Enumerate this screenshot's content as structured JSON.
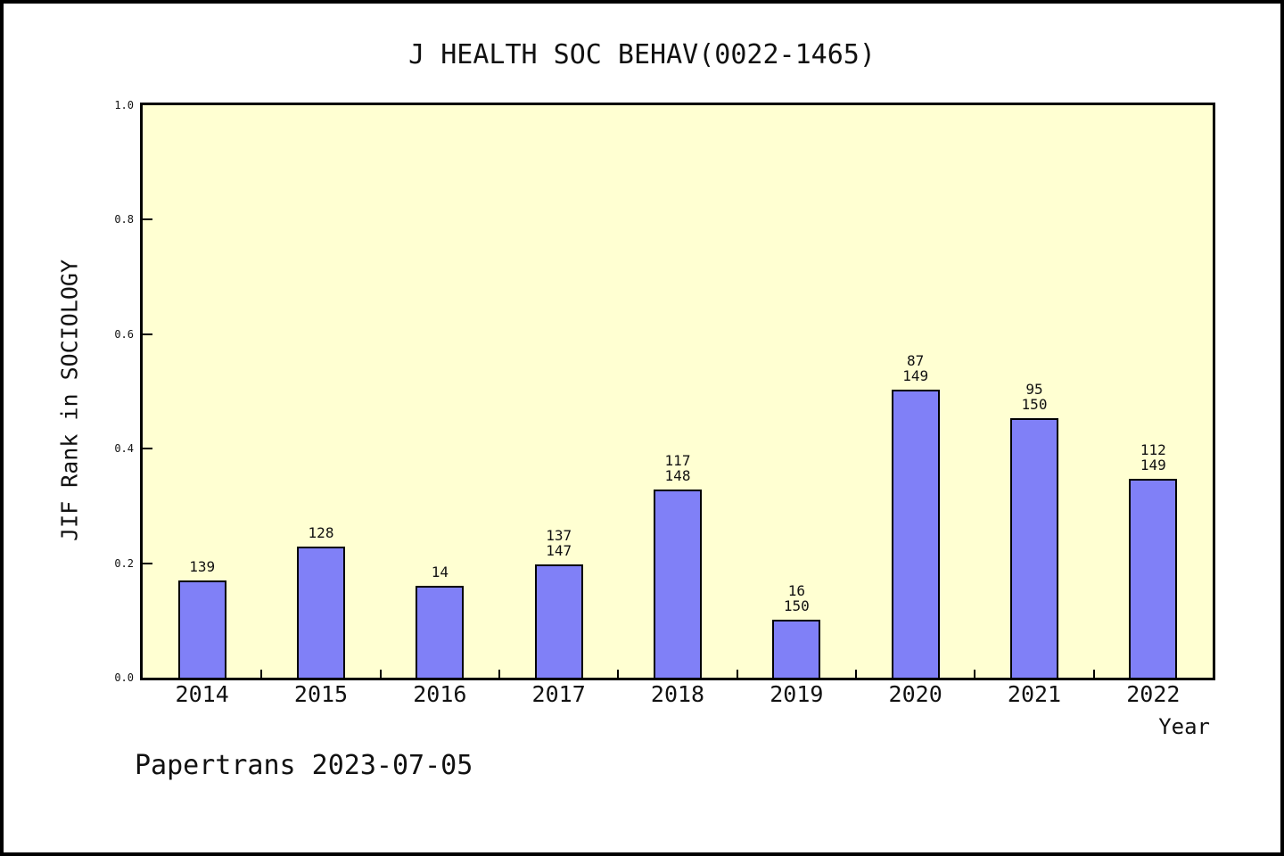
{
  "chart_data": {
    "type": "bar",
    "title": "J HEALTH SOC BEHAV(0022-1465)",
    "ylabel": "JIF Rank in SOCIOLOGY",
    "xlabel": "Year",
    "categories": [
      "2014",
      "2015",
      "2016",
      "2017",
      "2018",
      "2019",
      "2020",
      "2021",
      "2022"
    ],
    "values": [
      0.17,
      0.229,
      0.16,
      0.198,
      0.328,
      0.102,
      0.503,
      0.453,
      0.348
    ],
    "bar_labels": [
      [
        "139"
      ],
      [
        "128"
      ],
      [
        "14"
      ],
      [
        "137",
        "147"
      ],
      [
        "117",
        "148"
      ],
      [
        "16",
        "150"
      ],
      [
        "87",
        "149"
      ],
      [
        "95",
        "150"
      ],
      [
        "112",
        "149"
      ]
    ],
    "ylim": [
      0,
      1
    ],
    "ytick_labels": [
      "0.0",
      "0.2",
      "0.4",
      "0.6",
      "0.8",
      "1.0"
    ],
    "ytick_values": [
      0.0,
      0.2,
      0.4,
      0.6,
      0.8,
      1.0
    ],
    "grid": "off",
    "legend": "none",
    "colors": {
      "bar_fill": "#8080F7",
      "bar_edge": "#000000",
      "plot_background": "#FFFFD2",
      "page_background": "#FFFFFF",
      "frame": "#000000",
      "text": "#111111"
    }
  },
  "footer": {
    "text": "Papertrans 2023-07-05"
  }
}
